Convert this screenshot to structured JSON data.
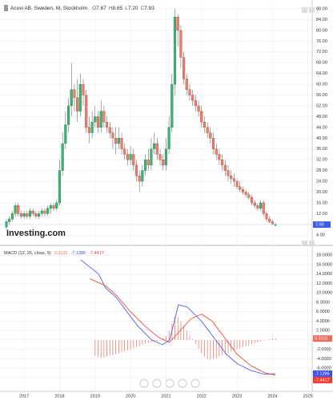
{
  "chart_data": [
    {
      "type": "candlestick",
      "title": "Acuvi AB, Sweden, M, Stockholm",
      "ohlc_labels": [
        "O",
        "H",
        "L",
        "C"
      ],
      "header_values": [
        "7.67",
        "8.65",
        "7.20",
        "7.93"
      ],
      "watermark": "Investing.com",
      "up_color": "#3cb371",
      "down_color": "#ef7d6b",
      "grid": true,
      "xlim": [
        2016.32,
        2025.3
      ],
      "ylim": [
        0.5,
        89.5
      ],
      "yticks": [
        {
          "value": 4,
          "label": "4.00"
        },
        {
          "value": 8,
          "label": "8.00"
        },
        {
          "value": 12,
          "label": "12.00"
        },
        {
          "value": 16,
          "label": "16.00"
        },
        {
          "value": 20,
          "label": "20.00"
        },
        {
          "value": 24,
          "label": "24.00"
        },
        {
          "value": 28,
          "label": "28.00"
        },
        {
          "value": 32,
          "label": "32.00"
        },
        {
          "value": 36,
          "label": "36.00"
        },
        {
          "value": 40,
          "label": "40.00"
        },
        {
          "value": 44,
          "label": "44.00"
        },
        {
          "value": 48,
          "label": "48.00"
        },
        {
          "value": 52,
          "label": "52.00"
        },
        {
          "value": 56,
          "label": "56.00"
        },
        {
          "value": 60,
          "label": "60.00"
        },
        {
          "value": 64,
          "label": "64.00"
        },
        {
          "value": 68,
          "label": "68.00"
        },
        {
          "value": 72,
          "label": "72.00"
        },
        {
          "value": 76,
          "label": "76.00"
        },
        {
          "value": 80,
          "label": "80.00"
        },
        {
          "value": 84,
          "label": "84.00"
        },
        {
          "value": 88,
          "label": "88.00"
        }
      ],
      "x": [
        2016.5,
        2016.583,
        2016.667,
        2016.75,
        2016.833,
        2016.917,
        2017,
        2017.083,
        2017.167,
        2017.25,
        2017.333,
        2017.417,
        2017.5,
        2017.583,
        2017.667,
        2017.75,
        2017.833,
        2017.917,
        2018,
        2018.083,
        2018.167,
        2018.25,
        2018.333,
        2018.417,
        2018.5,
        2018.583,
        2018.667,
        2018.75,
        2018.833,
        2018.917,
        2019,
        2019.083,
        2019.167,
        2019.25,
        2019.333,
        2019.417,
        2019.5,
        2019.583,
        2019.667,
        2019.75,
        2019.833,
        2019.917,
        2020,
        2020.083,
        2020.167,
        2020.25,
        2020.333,
        2020.417,
        2020.5,
        2020.583,
        2020.667,
        2020.75,
        2020.833,
        2020.917,
        2021,
        2021.083,
        2021.167,
        2021.25,
        2021.333,
        2021.417,
        2021.5,
        2021.583,
        2021.667,
        2021.75,
        2021.833,
        2021.917,
        2022,
        2022.083,
        2022.167,
        2022.25,
        2022.333,
        2022.417,
        2022.5,
        2022.583,
        2022.667,
        2022.75,
        2022.833,
        2022.917,
        2023,
        2023.083,
        2023.167,
        2023.25,
        2023.333,
        2023.417,
        2023.5,
        2023.583,
        2023.667,
        2023.75,
        2023.833,
        2023.917,
        2024,
        2024.083
      ],
      "open": [
        7,
        9,
        10,
        12,
        15,
        12,
        11,
        12,
        11,
        13,
        12,
        11,
        12,
        13,
        12,
        14,
        15,
        14,
        16,
        28,
        38,
        45,
        52,
        58,
        55,
        50,
        60,
        56,
        44,
        42,
        46,
        48,
        44,
        50,
        46,
        44,
        42,
        40,
        38,
        40,
        36,
        34,
        32,
        34,
        30,
        26,
        24,
        28,
        32,
        30,
        36,
        38,
        34,
        32,
        30,
        36,
        44,
        60,
        85,
        80,
        70,
        62,
        58,
        56,
        54,
        52,
        50,
        46,
        44,
        42,
        40,
        36,
        34,
        32,
        30,
        28,
        26,
        25,
        24,
        22,
        21,
        20,
        19,
        18,
        16,
        15,
        14,
        16,
        12,
        10,
        9,
        7.67
      ],
      "high": [
        10,
        11,
        13,
        16,
        16,
        13,
        13,
        13,
        14,
        14,
        13,
        13,
        14,
        14,
        15,
        16,
        16,
        17,
        32,
        42,
        50,
        55,
        68,
        60,
        62,
        64,
        62,
        58,
        48,
        50,
        52,
        50,
        54,
        52,
        48,
        46,
        44,
        44,
        44,
        42,
        38,
        36,
        37,
        36,
        32,
        28,
        30,
        34,
        36,
        40,
        42,
        40,
        36,
        34,
        40,
        48,
        64,
        88,
        86,
        82,
        72,
        64,
        60,
        58,
        56,
        54,
        52,
        48,
        46,
        44,
        42,
        38,
        36,
        34,
        32,
        30,
        28,
        27,
        25,
        24,
        22,
        21,
        20,
        19,
        17,
        16,
        17,
        17,
        13,
        11,
        9.5,
        8.65
      ],
      "low": [
        6,
        8,
        9,
        11,
        11,
        10,
        10,
        10,
        10,
        11,
        10,
        10,
        11,
        11,
        11,
        12,
        13,
        13,
        15,
        26,
        36,
        42,
        48,
        50,
        46,
        48,
        52,
        42,
        38,
        40,
        44,
        42,
        42,
        44,
        42,
        40,
        36,
        34,
        36,
        34,
        32,
        30,
        30,
        28,
        24,
        20,
        22,
        26,
        28,
        28,
        34,
        32,
        30,
        28,
        28,
        34,
        42,
        56,
        74,
        66,
        60,
        56,
        54,
        52,
        50,
        48,
        44,
        42,
        40,
        38,
        34,
        32,
        30,
        28,
        26,
        24,
        23,
        22,
        21,
        20,
        19,
        18,
        17,
        15,
        14,
        13,
        13,
        11,
        9,
        8.5,
        7.8,
        7.2
      ],
      "close": [
        9,
        10,
        12,
        15,
        12,
        11,
        12,
        11,
        13,
        12,
        11,
        12,
        13,
        12,
        14,
        15,
        14,
        16,
        28,
        38,
        45,
        52,
        58,
        55,
        50,
        60,
        56,
        44,
        42,
        46,
        48,
        44,
        50,
        46,
        44,
        42,
        40,
        38,
        40,
        36,
        34,
        32,
        34,
        30,
        26,
        24,
        28,
        32,
        30,
        36,
        38,
        34,
        32,
        30,
        36,
        44,
        60,
        85,
        80,
        70,
        62,
        58,
        56,
        54,
        52,
        50,
        46,
        44,
        42,
        40,
        36,
        34,
        32,
        30,
        28,
        26,
        25,
        24,
        22,
        21,
        20,
        19,
        18,
        16,
        15,
        14,
        16,
        12,
        10,
        9,
        8.2,
        7.93
      ]
    },
    {
      "type": "macd",
      "title": "MACD (12, 26, close, 9)",
      "grid": true,
      "xlim": [
        2016.32,
        2025.3
      ],
      "ylim": [
        -10.9,
        19.4
      ],
      "xticks": [
        2017,
        2018,
        2019,
        2020,
        2021,
        2022,
        2023,
        2024,
        2025
      ],
      "yticks": [
        {
          "value": -8,
          "label": "-8.0000"
        },
        {
          "value": -6,
          "label": "-6.0000"
        },
        {
          "value": -4,
          "label": "-4.0000"
        },
        {
          "value": -2,
          "label": "-2.0000"
        },
        {
          "value": 0,
          "label": "0.0000"
        },
        {
          "value": 2,
          "label": "2.0000"
        },
        {
          "value": 4,
          "label": "4.0000"
        },
        {
          "value": 6,
          "label": "6.0000"
        },
        {
          "value": 8,
          "label": "8.0000"
        },
        {
          "value": 10,
          "label": "10.0000"
        },
        {
          "value": 12,
          "label": "12.0000"
        },
        {
          "value": 14,
          "label": "14.0000"
        },
        {
          "value": 16,
          "label": "16.0000"
        },
        {
          "value": 18,
          "label": "18.0000"
        }
      ],
      "histogram": {
        "color": "#ef6a5a",
        "x": [
          2019,
          2019.083,
          2019.167,
          2019.25,
          2019.333,
          2019.417,
          2019.5,
          2019.583,
          2019.667,
          2019.75,
          2019.833,
          2019.917,
          2020,
          2020.083,
          2020.167,
          2020.25,
          2020.333,
          2020.417,
          2020.5,
          2020.583,
          2020.667,
          2020.75,
          2020.833,
          2020.917,
          2021,
          2021.083,
          2021.167,
          2021.25,
          2021.333,
          2021.417,
          2021.5,
          2021.583,
          2021.667,
          2021.75,
          2021.833,
          2021.917,
          2022,
          2022.083,
          2022.167,
          2022.25,
          2022.333,
          2022.417,
          2022.5,
          2022.583,
          2022.667,
          2022.75,
          2022.833,
          2022.917,
          2023,
          2023.083,
          2023.167,
          2023.25,
          2023.333,
          2023.417,
          2023.5,
          2023.583,
          2023.667,
          2023.75,
          2023.833,
          2023.917,
          2024,
          2024.083
        ],
        "values": [
          -3.4,
          -3.6,
          -3.8,
          -3.7,
          -3.5,
          -3.3,
          -3.2,
          -3,
          -2.8,
          -2.6,
          -2.4,
          -2.2,
          -2,
          -1.8,
          -1.5,
          -1.2,
          -1,
          -0.8,
          -0.6,
          -0.5,
          -0.4,
          -0.3,
          -0.2,
          0.3,
          0.8,
          2,
          3.5,
          5,
          4.8,
          4,
          3,
          2,
          1,
          0.2,
          -0.8,
          -1.8,
          -2.8,
          -3.5,
          -4,
          -4.2,
          -4,
          -3.8,
          -3.5,
          -3.2,
          -3,
          -2.8,
          -2.5,
          -2.2,
          -2,
          -1.8,
          -1.5,
          -1.3,
          -1.1,
          -0.9,
          -0.7,
          -0.5,
          -0.3,
          -0.1,
          0.1,
          0.2,
          0.3,
          0.3131
        ]
      },
      "series": [
        {
          "color": "#3b4cf0",
          "x": [
            2018.6,
            2019.1,
            2019.3,
            2019.6,
            2019.9,
            2020.2,
            2020.6,
            2020.9,
            2021.1,
            2021.35,
            2021.6,
            2022.0,
            2022.4,
            2022.7,
            2023.0,
            2023.4,
            2023.8,
            2024.083
          ],
          "values": [
            17,
            14,
            11,
            9,
            6,
            3,
            0,
            -1,
            0,
            7.5,
            7,
            4,
            0,
            -3,
            -5,
            -6.5,
            -7.3,
            -7.1286
          ]
        },
        {
          "color": "#f03a2e",
          "x": [
            2018.85,
            2019.3,
            2019.6,
            2020.0,
            2020.4,
            2020.8,
            2021.1,
            2021.4,
            2021.7,
            2022.0,
            2022.3,
            2022.7,
            2023.0,
            2023.4,
            2023.8,
            2024.083
          ],
          "values": [
            13,
            11.5,
            9.5,
            6,
            3,
            0.5,
            -0.5,
            2,
            4.5,
            5.5,
            4,
            0,
            -3,
            -5.5,
            -7,
            -7.4417
          ]
        }
      ]
    }
  ]
}
